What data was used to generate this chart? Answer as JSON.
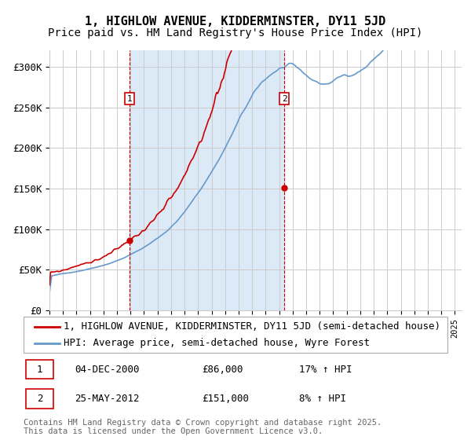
{
  "title": "1, HIGHLOW AVENUE, KIDDERMINSTER, DY11 5JD",
  "subtitle": "Price paid vs. HM Land Registry's House Price Index (HPI)",
  "ylim": [
    0,
    320000
  ],
  "yticks": [
    0,
    50000,
    100000,
    150000,
    200000,
    250000,
    300000
  ],
  "ytick_labels": [
    "£0",
    "£50K",
    "£100K",
    "£150K",
    "£200K",
    "£250K",
    "£300K"
  ],
  "shaded_region_color": "#dce9f7",
  "grid_color": "#cccccc",
  "sale1": {
    "date_num": 2000.92,
    "price": 86000,
    "label": "1",
    "hpi_pct": "17% ↑ HPI",
    "date_str": "04-DEC-2000"
  },
  "sale2": {
    "date_num": 2012.39,
    "price": 151000,
    "label": "2",
    "hpi_pct": "8% ↑ HPI",
    "date_str": "25-MAY-2012"
  },
  "legend_line1": "1, HIGHLOW AVENUE, KIDDERMINSTER, DY11 5JD (semi-detached house)",
  "legend_line2": "HPI: Average price, semi-detached house, Wyre Forest",
  "footer": "Contains HM Land Registry data © Crown copyright and database right 2025.\nThis data is licensed under the Open Government Licence v3.0.",
  "red_line_color": "#cc0000",
  "blue_line_color": "#6699cc",
  "title_fontsize": 11,
  "subtitle_fontsize": 10,
  "tick_fontsize": 9,
  "legend_fontsize": 9,
  "footer_fontsize": 7.5
}
